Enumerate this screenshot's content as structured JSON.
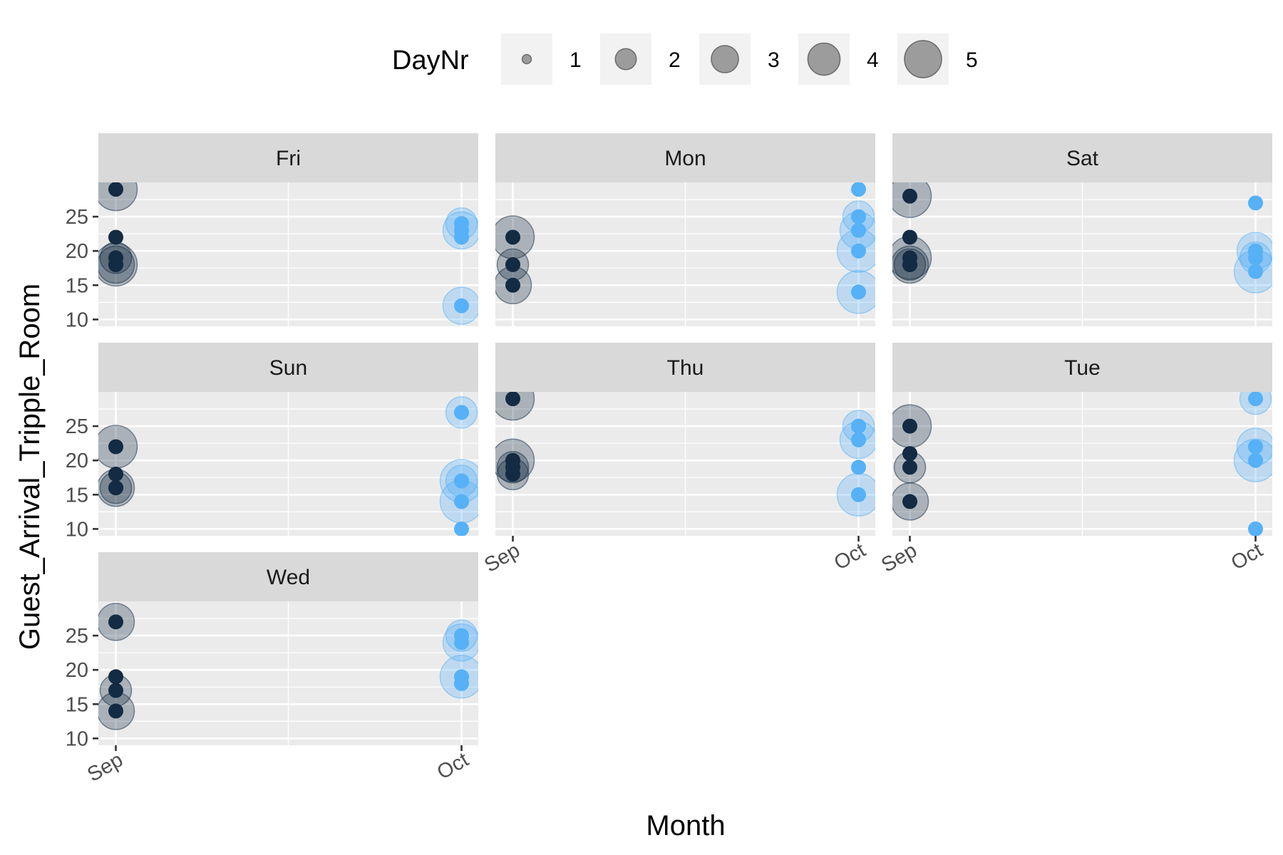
{
  "chart_data": {
    "type": "scatter",
    "xlabel": "Month",
    "ylabel": "Guest_Arrival_Tripple_Room",
    "x_categories": [
      "Sep",
      "Oct"
    ],
    "y_ticks": [
      10,
      15,
      20,
      25
    ],
    "ylim": [
      9,
      30
    ],
    "legend": {
      "title": "DayNr",
      "placement": "top",
      "sizes": [
        1,
        2,
        3,
        4,
        5
      ],
      "labels": [
        "1",
        "2",
        "3",
        "4",
        "5"
      ]
    },
    "colors": {
      "Sep": "#132b43",
      "Oct": "#56b1f7"
    },
    "facets": [
      {
        "name": "Fri",
        "points": [
          {
            "x": "Sep",
            "y": 29,
            "size": 5
          },
          {
            "x": "Sep",
            "y": 22,
            "size": 1
          },
          {
            "x": "Sep",
            "y": 19,
            "size": 3
          },
          {
            "x": "Sep",
            "y": 18,
            "size": 5
          },
          {
            "x": "Sep",
            "y": 18,
            "size": 4
          },
          {
            "x": "Oct",
            "y": 24,
            "size": 3
          },
          {
            "x": "Oct",
            "y": 23,
            "size": 4
          },
          {
            "x": "Oct",
            "y": 22,
            "size": 1
          },
          {
            "x": "Oct",
            "y": 12,
            "size": 4
          }
        ]
      },
      {
        "name": "Mon",
        "points": [
          {
            "x": "Sep",
            "y": 22,
            "size": 5
          },
          {
            "x": "Sep",
            "y": 18,
            "size": 3
          },
          {
            "x": "Sep",
            "y": 15,
            "size": 4
          },
          {
            "x": "Oct",
            "y": 29,
            "size": 1
          },
          {
            "x": "Oct",
            "y": 25,
            "size": 3
          },
          {
            "x": "Oct",
            "y": 23,
            "size": 4
          },
          {
            "x": "Oct",
            "y": 20,
            "size": 5
          },
          {
            "x": "Oct",
            "y": 14,
            "size": 5
          }
        ]
      },
      {
        "name": "Sat",
        "points": [
          {
            "x": "Sep",
            "y": 28,
            "size": 5
          },
          {
            "x": "Sep",
            "y": 22,
            "size": 1
          },
          {
            "x": "Sep",
            "y": 19,
            "size": 5
          },
          {
            "x": "Sep",
            "y": 18,
            "size": 4
          },
          {
            "x": "Sep",
            "y": 18,
            "size": 3
          },
          {
            "x": "Oct",
            "y": 27,
            "size": 1
          },
          {
            "x": "Oct",
            "y": 20,
            "size": 4
          },
          {
            "x": "Oct",
            "y": 19,
            "size": 3
          },
          {
            "x": "Oct",
            "y": 17,
            "size": 5
          }
        ]
      },
      {
        "name": "Sun",
        "points": [
          {
            "x": "Sep",
            "y": 22,
            "size": 5
          },
          {
            "x": "Sep",
            "y": 18,
            "size": 1
          },
          {
            "x": "Sep",
            "y": 16,
            "size": 4
          },
          {
            "x": "Sep",
            "y": 16,
            "size": 3
          },
          {
            "x": "Oct",
            "y": 27,
            "size": 3
          },
          {
            "x": "Oct",
            "y": 17,
            "size": 5
          },
          {
            "x": "Oct",
            "y": 17,
            "size": 3
          },
          {
            "x": "Oct",
            "y": 14,
            "size": 5
          },
          {
            "x": "Oct",
            "y": 10,
            "size": 1
          }
        ]
      },
      {
        "name": "Thu",
        "points": [
          {
            "x": "Sep",
            "y": 29,
            "size": 5
          },
          {
            "x": "Sep",
            "y": 20,
            "size": 5
          },
          {
            "x": "Sep",
            "y": 19,
            "size": 3
          },
          {
            "x": "Sep",
            "y": 18,
            "size": 3
          },
          {
            "x": "Oct",
            "y": 25,
            "size": 3
          },
          {
            "x": "Oct",
            "y": 23,
            "size": 4
          },
          {
            "x": "Oct",
            "y": 19,
            "size": 1
          },
          {
            "x": "Oct",
            "y": 15,
            "size": 5
          }
        ]
      },
      {
        "name": "Tue",
        "points": [
          {
            "x": "Sep",
            "y": 25,
            "size": 5
          },
          {
            "x": "Sep",
            "y": 21,
            "size": 1
          },
          {
            "x": "Sep",
            "y": 19,
            "size": 3
          },
          {
            "x": "Sep",
            "y": 14,
            "size": 4
          },
          {
            "x": "Oct",
            "y": 29,
            "size": 3
          },
          {
            "x": "Oct",
            "y": 22,
            "size": 4
          },
          {
            "x": "Oct",
            "y": 20,
            "size": 5
          },
          {
            "x": "Oct",
            "y": 10,
            "size": 1
          }
        ]
      },
      {
        "name": "Wed",
        "points": [
          {
            "x": "Sep",
            "y": 27,
            "size": 4
          },
          {
            "x": "Sep",
            "y": 19,
            "size": 1
          },
          {
            "x": "Sep",
            "y": 17,
            "size": 3
          },
          {
            "x": "Sep",
            "y": 14,
            "size": 4
          },
          {
            "x": "Oct",
            "y": 25,
            "size": 3
          },
          {
            "x": "Oct",
            "y": 24,
            "size": 4
          },
          {
            "x": "Oct",
            "y": 19,
            "size": 5
          },
          {
            "x": "Oct",
            "y": 18,
            "size": 1
          }
        ]
      }
    ]
  }
}
